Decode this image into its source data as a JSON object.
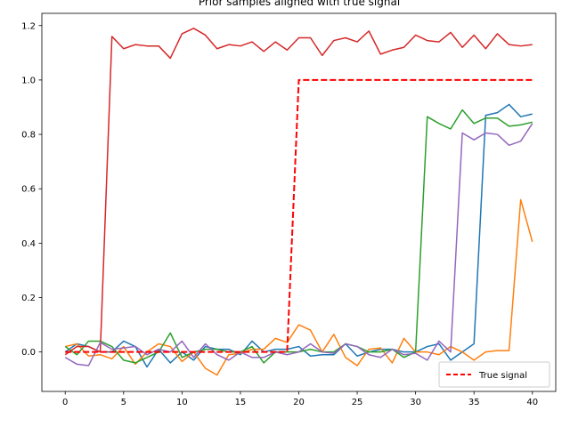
{
  "chart_data": {
    "type": "line",
    "title": "Prior samples aligned with true signal",
    "xlabel": "",
    "ylabel": "",
    "xlim": [
      -2,
      42
    ],
    "ylim": [
      -0.145,
      1.245
    ],
    "xticks": [
      0,
      5,
      10,
      15,
      20,
      25,
      30,
      35,
      40
    ],
    "yticks": [
      0.0,
      0.2,
      0.4,
      0.6,
      0.8,
      1.0,
      1.2
    ],
    "ytick_labels": [
      "0.0",
      "0.2",
      "0.4",
      "0.6",
      "0.8",
      "1.0",
      "1.2"
    ],
    "grid": false,
    "legend": {
      "position": "lower-right",
      "entries": [
        "True signal"
      ]
    },
    "x": [
      0,
      1,
      2,
      3,
      4,
      5,
      6,
      7,
      8,
      9,
      10,
      11,
      12,
      13,
      14,
      15,
      16,
      17,
      18,
      19,
      20,
      21,
      22,
      23,
      24,
      25,
      26,
      27,
      28,
      29,
      30,
      31,
      32,
      33,
      34,
      35,
      36,
      37,
      38,
      39,
      40
    ],
    "series": [
      {
        "color": "#1f77b4",
        "values": [
          0.0,
          0.03,
          0.02,
          0.0,
          0.0,
          0.04,
          0.02,
          -0.055,
          0.01,
          -0.04,
          0.0,
          -0.03,
          0.02,
          0.01,
          0.01,
          -0.01,
          0.04,
          0.0,
          0.01,
          0.01,
          0.02,
          -0.015,
          -0.01,
          -0.01,
          0.03,
          -0.015,
          0.0,
          0.01,
          0.01,
          0.0,
          0.0,
          0.02,
          0.03,
          -0.03,
          0.0,
          0.03,
          0.87,
          0.88,
          0.91,
          0.865,
          0.875
        ]
      },
      {
        "color": "#ff7f0e",
        "values": [
          0.02,
          0.03,
          -0.015,
          -0.01,
          -0.025,
          0.02,
          -0.045,
          0.0,
          0.03,
          0.02,
          -0.035,
          0.0,
          -0.06,
          -0.085,
          -0.01,
          -0.005,
          0.01,
          0.01,
          0.05,
          0.035,
          0.1,
          0.08,
          0.0,
          0.065,
          -0.02,
          -0.05,
          0.01,
          0.015,
          -0.04,
          0.05,
          0.0,
          0.0,
          -0.01,
          0.02,
          0.0,
          -0.03,
          0.0,
          0.005,
          0.005,
          0.56,
          0.405
        ]
      },
      {
        "color": "#2ca02c",
        "values": [
          0.02,
          -0.01,
          0.04,
          0.04,
          0.02,
          -0.03,
          -0.04,
          -0.02,
          0.0,
          0.07,
          -0.02,
          0.0,
          0.01,
          0.01,
          0.0,
          0.0,
          0.02,
          -0.04,
          0.0,
          0.0,
          0.0,
          0.01,
          0.0,
          0.0,
          0.03,
          0.02,
          0.0,
          0.0,
          0.01,
          -0.02,
          0.0,
          0.865,
          0.84,
          0.82,
          0.89,
          0.84,
          0.86,
          0.86,
          0.83,
          0.835,
          0.845
        ]
      },
      {
        "color": "#d62728",
        "values": [
          -0.01,
          0.02,
          0.02,
          0.0,
          1.16,
          1.115,
          1.13,
          1.125,
          1.125,
          1.08,
          1.17,
          1.19,
          1.165,
          1.115,
          1.13,
          1.125,
          1.14,
          1.105,
          1.14,
          1.11,
          1.155,
          1.155,
          1.09,
          1.145,
          1.155,
          1.14,
          1.18,
          1.095,
          1.11,
          1.12,
          1.165,
          1.145,
          1.14,
          1.175,
          1.12,
          1.165,
          1.115,
          1.17,
          1.13,
          1.125,
          1.13
        ]
      },
      {
        "color": "#9467bd",
        "values": [
          -0.02,
          -0.045,
          -0.05,
          0.035,
          0.01,
          0.015,
          0.02,
          -0.01,
          0.01,
          0.0,
          0.04,
          -0.02,
          0.03,
          -0.01,
          -0.03,
          0.0,
          -0.02,
          -0.02,
          0.0,
          -0.01,
          0.0,
          0.03,
          0.0,
          -0.005,
          0.03,
          0.02,
          -0.01,
          -0.02,
          0.01,
          -0.01,
          -0.005,
          -0.03,
          0.04,
          0.0,
          0.805,
          0.78,
          0.805,
          0.8,
          0.76,
          0.775,
          0.84
        ]
      },
      {
        "name": "True signal",
        "color": "#ff0000",
        "dashed": true,
        "values": [
          0,
          0,
          0,
          0,
          0,
          0,
          0,
          0,
          0,
          0,
          0,
          0,
          0,
          0,
          0,
          0,
          0,
          0,
          0,
          0,
          1,
          1,
          1,
          1,
          1,
          1,
          1,
          1,
          1,
          1,
          1,
          1,
          1,
          1,
          1,
          1,
          1,
          1,
          1,
          1,
          1
        ]
      }
    ]
  }
}
